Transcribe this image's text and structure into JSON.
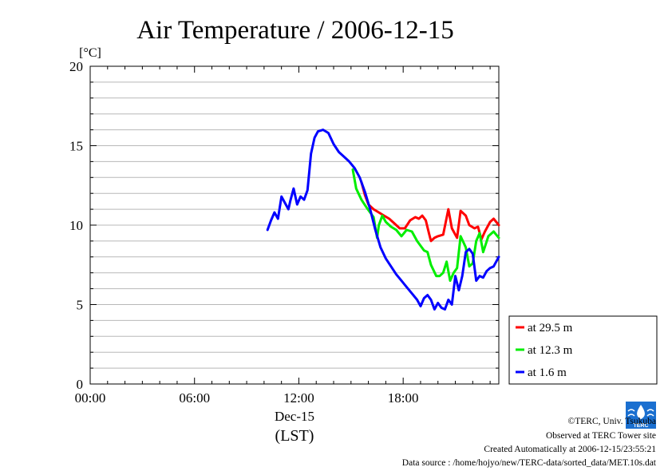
{
  "chart_data": {
    "type": "line",
    "title": "Air Temperature / 2006-12-15",
    "ylabel": "[°C]",
    "xlabel": "(LST)",
    "date_label": "Dec-15",
    "xlim_hours": [
      0,
      23.5
    ],
    "ylim": [
      0,
      20
    ],
    "x_ticks": [
      {
        "label": "00:00",
        "hour": 0
      },
      {
        "label": "06:00",
        "hour": 6
      },
      {
        "label": "12:00",
        "hour": 12
      },
      {
        "label": "18:00",
        "hour": 18
      }
    ],
    "y_ticks": [
      {
        "label": "0",
        "value": 0
      },
      {
        "label": "5",
        "value": 5
      },
      {
        "label": "10",
        "value": 10
      },
      {
        "label": "15",
        "value": 15
      },
      {
        "label": "20",
        "value": 20
      }
    ],
    "grid": true,
    "legend_position": "bottom-right, outside plot",
    "series": [
      {
        "name": "at 29.5 m",
        "color": "#ff0000",
        "x": [
          15.6,
          15.8,
          16.0,
          16.3,
          16.6,
          16.9,
          17.2,
          17.5,
          17.8,
          18.1,
          18.4,
          18.7,
          18.9,
          19.1,
          19.3,
          19.5,
          19.6,
          19.8,
          20.0,
          20.3,
          20.6,
          20.8,
          21.0,
          21.1,
          21.3,
          21.6,
          21.8,
          22.1,
          22.3,
          22.5,
          22.7,
          23.0,
          23.2,
          23.5
        ],
        "y": [
          12.7,
          11.9,
          11.3,
          11.0,
          10.8,
          10.6,
          10.4,
          10.1,
          9.8,
          9.8,
          10.3,
          10.5,
          10.4,
          10.6,
          10.3,
          9.4,
          9.0,
          9.2,
          9.3,
          9.4,
          11.0,
          9.8,
          9.4,
          9.2,
          10.9,
          10.6,
          10.0,
          9.8,
          9.9,
          9.1,
          9.6,
          10.2,
          10.4,
          10.0
        ]
      },
      {
        "name": "at 12.3 m",
        "color": "#00ee00",
        "x": [
          15.1,
          15.3,
          15.6,
          15.9,
          16.1,
          16.3,
          16.5,
          16.6,
          16.8,
          17.0,
          17.3,
          17.6,
          17.9,
          18.2,
          18.5,
          18.8,
          19.0,
          19.2,
          19.4,
          19.6,
          19.9,
          20.1,
          20.3,
          20.5,
          20.7,
          20.9,
          21.1,
          21.3,
          21.6,
          21.8,
          22.0,
          22.2,
          22.4,
          22.6,
          22.9,
          23.2,
          23.5
        ],
        "y": [
          13.5,
          12.3,
          11.6,
          11.1,
          10.8,
          10.5,
          9.2,
          10.0,
          10.6,
          10.2,
          9.9,
          9.7,
          9.3,
          9.7,
          9.6,
          9.0,
          8.7,
          8.4,
          8.3,
          7.5,
          6.8,
          6.8,
          7.0,
          7.7,
          6.5,
          7.0,
          7.3,
          9.3,
          8.6,
          7.4,
          7.6,
          9.0,
          9.5,
          8.3,
          9.3,
          9.6,
          9.2
        ]
      },
      {
        "name": "at 1.6 m",
        "color": "#0000ff",
        "x": [
          10.2,
          10.4,
          10.6,
          10.8,
          11.0,
          11.2,
          11.4,
          11.5,
          11.7,
          11.9,
          12.1,
          12.3,
          12.5,
          12.7,
          12.9,
          13.1,
          13.4,
          13.7,
          14.0,
          14.3,
          14.6,
          14.9,
          15.2,
          15.5,
          15.8,
          16.1,
          16.4,
          16.7,
          17.0,
          17.3,
          17.6,
          17.9,
          18.2,
          18.5,
          18.8,
          19.0,
          19.2,
          19.4,
          19.6,
          19.8,
          20.0,
          20.2,
          20.4,
          20.6,
          20.8,
          21.0,
          21.2,
          21.4,
          21.6,
          21.8,
          22.0,
          22.2,
          22.4,
          22.6,
          22.8,
          23.0,
          23.2,
          23.5
        ],
        "y": [
          9.7,
          10.3,
          10.8,
          10.4,
          11.8,
          11.4,
          11.0,
          11.5,
          12.3,
          11.3,
          11.8,
          11.6,
          12.2,
          14.5,
          15.5,
          15.9,
          16.0,
          15.8,
          15.1,
          14.6,
          14.3,
          14.0,
          13.6,
          13.0,
          12.1,
          11.0,
          9.7,
          8.6,
          7.9,
          7.4,
          6.9,
          6.5,
          6.1,
          5.7,
          5.3,
          4.9,
          5.4,
          5.6,
          5.3,
          4.7,
          5.1,
          4.8,
          4.7,
          5.3,
          5.0,
          6.8,
          5.9,
          6.8,
          8.3,
          8.5,
          8.2,
          6.5,
          6.8,
          6.7,
          7.1,
          7.3,
          7.4,
          8.0
        ]
      }
    ]
  },
  "footer": {
    "copyright": "©TERC, Univ. Tsukuba",
    "observed": "Observed at TERC Tower site",
    "created": "Created Automatically at 2006-12-15/23:55:21",
    "source": "Data source : /home/hojyo/new/TERC-data/sorted_data/MET.10s.dat"
  },
  "logo": {
    "text": "TERC"
  }
}
